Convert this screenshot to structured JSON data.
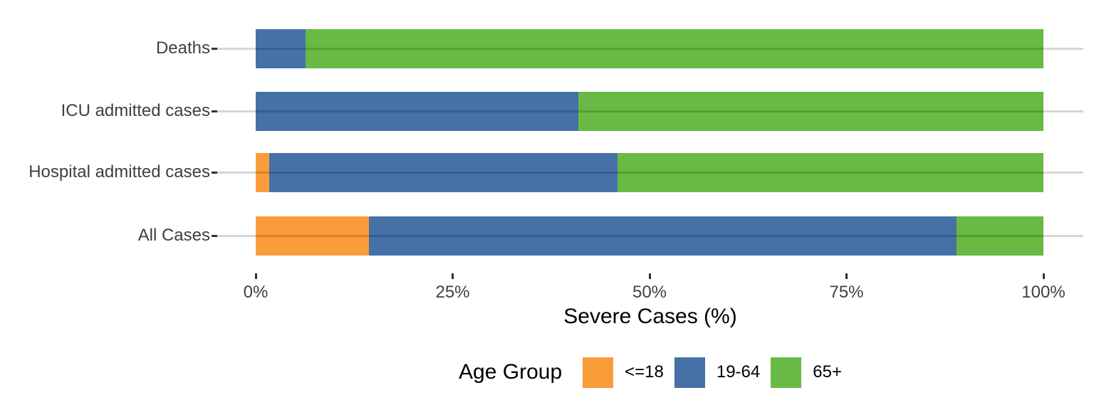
{
  "chart_data": {
    "type": "bar",
    "orientation": "horizontal",
    "stacked": true,
    "stack_total": 100,
    "xlabel": "Severe Cases (%)",
    "ylabel": "",
    "xlim": [
      0,
      100
    ],
    "grid": "horizontal-major-only",
    "legend_position": "bottom",
    "legend_title": "Age Group",
    "categories": [
      "Deaths",
      "ICU admitted cases",
      "Hospital admitted cases",
      "All Cases"
    ],
    "x_ticks": [
      {
        "value": 0,
        "label": "0%"
      },
      {
        "value": 25,
        "label": "25%"
      },
      {
        "value": 50,
        "label": "50%"
      },
      {
        "value": 75,
        "label": "75%"
      },
      {
        "value": 100,
        "label": "100%"
      }
    ],
    "series": [
      {
        "name": "<=18",
        "color": "#FB9C3A",
        "values": [
          0,
          0,
          1.7,
          14.4
        ]
      },
      {
        "name": "19-64",
        "color": "#4571A7",
        "values": [
          6.3,
          41.0,
          44.2,
          74.6
        ]
      },
      {
        "name": "65+",
        "color": "#69B945",
        "values": [
          93.7,
          59.0,
          54.1,
          11.0
        ]
      }
    ]
  },
  "colors": {
    "background": "#FFFFFF",
    "gridline": "#D6D6D6",
    "tick": "#333333",
    "axis_text": "#404040",
    "title_text": "#000000"
  }
}
